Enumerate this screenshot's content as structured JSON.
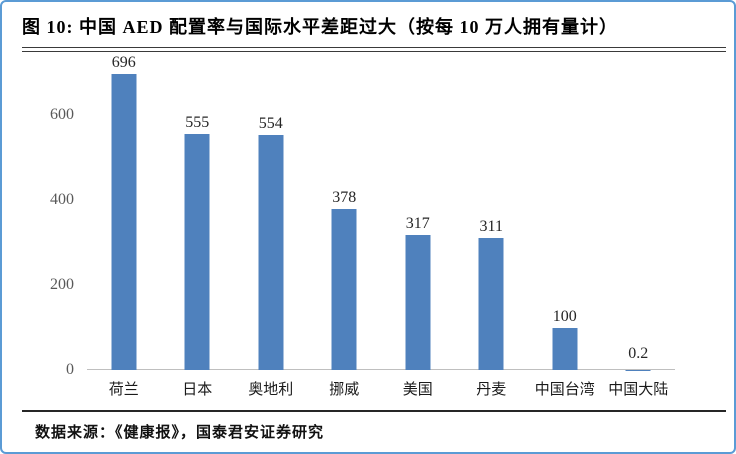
{
  "frame": {
    "border_color": "#5B9BD5",
    "divider_color": "#3A3A3A"
  },
  "chart_data": {
    "type": "bar",
    "title": "图 10:  中国 AED 配置率与国际水平差距过大（按每 10 万人拥有量计）",
    "source": "数据来源：《健康报》，国泰君安证券研究",
    "categories": [
      "荷兰",
      "日本",
      "奥地利",
      "挪威",
      "美国",
      "丹麦",
      "中国台湾",
      "中国大陆"
    ],
    "values": [
      696,
      555,
      554,
      378,
      317,
      311,
      100,
      0.2
    ],
    "data_labels": [
      "696",
      "555",
      "554",
      "378",
      "317",
      "311",
      "100",
      "0.2"
    ],
    "yticks": [
      0,
      200,
      400,
      600
    ],
    "ylim": [
      0,
      720
    ],
    "xlabel": "",
    "ylabel": "",
    "grid": false,
    "legend_position": "none",
    "bar_color": "#4F81BD",
    "axis_line_color": "#BFBFBF",
    "tick_label_color": "#595959",
    "value_label_color": "#262626"
  }
}
